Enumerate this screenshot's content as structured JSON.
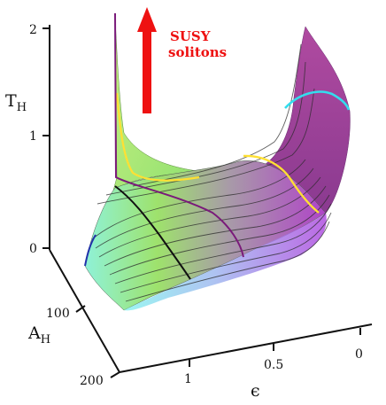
{
  "chart_data": {
    "type": "surface",
    "axes": {
      "z": {
        "label": "T",
        "label_sub": "H",
        "ticks": [
          "0",
          "1",
          "2"
        ]
      },
      "y": {
        "label": "A",
        "label_sub": "H",
        "ticks": [
          "100",
          "200"
        ]
      },
      "x": {
        "label": "ϵ",
        "ticks": [
          "1",
          "0.5",
          "0"
        ]
      }
    },
    "annotation": {
      "lines": [
        "SUSY",
        "solitons"
      ],
      "color": "#ee1111"
    },
    "colors": {
      "surface_low": "#7ef0e8",
      "surface_mid": "#9be060",
      "surface_high": "#b040c0",
      "arrow": "#ee1111",
      "curve_yellow": "#ffee33",
      "curve_purple": "#7a1a7a",
      "curve_cyan": "#33ddee",
      "curve_black": "#111111"
    }
  }
}
